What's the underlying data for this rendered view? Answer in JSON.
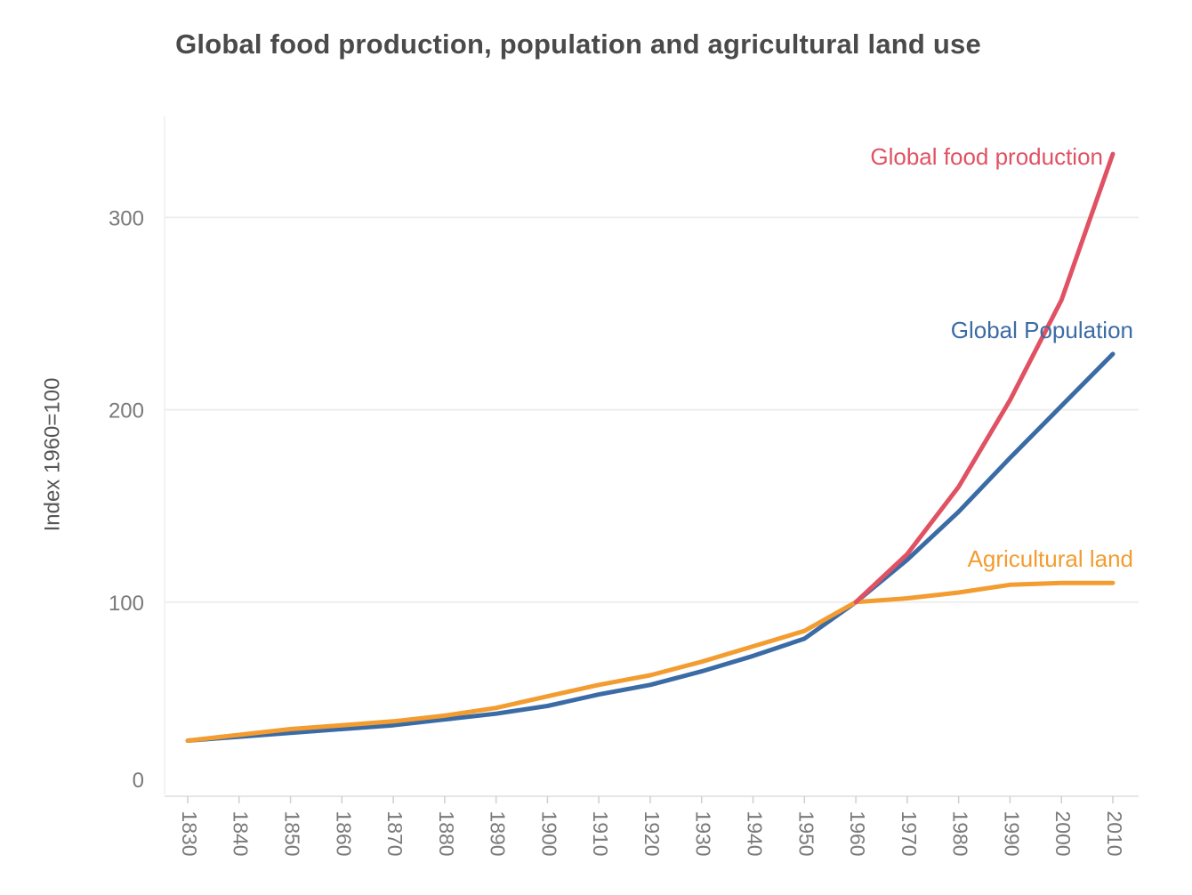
{
  "chart_data": {
    "type": "line",
    "title": "Global food production, population and agricultural land use",
    "xlabel": "",
    "ylabel": "Index 1960=100",
    "x": [
      1830,
      1840,
      1850,
      1860,
      1870,
      1880,
      1890,
      1900,
      1910,
      1920,
      1930,
      1940,
      1950,
      1960,
      1970,
      1980,
      1990,
      2000,
      2010
    ],
    "xlim": [
      1830,
      2010
    ],
    "ylim": [
      0,
      340
    ],
    "y_ticks": [
      0,
      100,
      200,
      300
    ],
    "grid": "horizontal",
    "legend": "inline labels at line ends",
    "series": [
      {
        "name": "Global food production",
        "color": "#e05263",
        "values": [
          null,
          null,
          null,
          null,
          null,
          null,
          null,
          null,
          null,
          null,
          null,
          null,
          null,
          100,
          125,
          160,
          205,
          257,
          333
        ]
      },
      {
        "name": "Global Population",
        "color": "#3b6ba5",
        "values": [
          28,
          30,
          32,
          34,
          36,
          39,
          42,
          46,
          52,
          57,
          64,
          72,
          81,
          100,
          122,
          147,
          175,
          202,
          229
        ]
      },
      {
        "name": "Agricultural land",
        "color": "#f39c30",
        "values": [
          28,
          31,
          34,
          36,
          38,
          41,
          45,
          51,
          57,
          62,
          69,
          77,
          85,
          100,
          102,
          105,
          109,
          110,
          110
        ]
      }
    ]
  }
}
